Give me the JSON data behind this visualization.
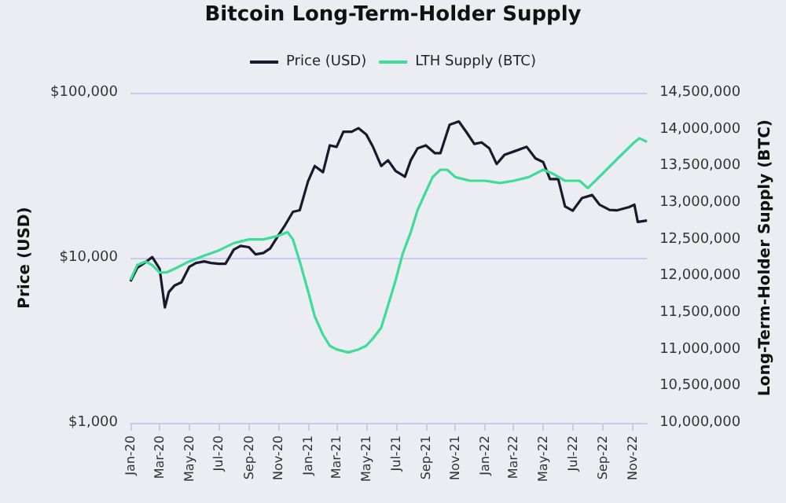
{
  "chart_data": {
    "type": "line",
    "title": "Bitcoin Long-Term-Holder Supply",
    "ylabel": "Price (USD)",
    "y2label": "Long-Term-Holder Supply (BTC)",
    "legend": "top",
    "grid": "y",
    "marker": "none",
    "line_style": "solid",
    "log": "y",
    "xlim": [
      "2020-01-01",
      "2022-12-01"
    ],
    "xticks": [
      {
        "value": "2020-01-01",
        "label": "Jan-20"
      },
      {
        "value": "2020-03-01",
        "label": "Mar-20"
      },
      {
        "value": "2020-05-01",
        "label": "May-20"
      },
      {
        "value": "2020-07-01",
        "label": "Jul-20"
      },
      {
        "value": "2020-09-01",
        "label": "Sep-20"
      },
      {
        "value": "2020-11-01",
        "label": "Nov-20"
      },
      {
        "value": "2021-01-01",
        "label": "Jan-21"
      },
      {
        "value": "2021-03-01",
        "label": "Mar-21"
      },
      {
        "value": "2021-05-01",
        "label": "May-21"
      },
      {
        "value": "2021-07-01",
        "label": "Jul-21"
      },
      {
        "value": "2021-09-01",
        "label": "Sep-21"
      },
      {
        "value": "2021-11-01",
        "label": "Nov-21"
      },
      {
        "value": "2022-01-01",
        "label": "Jan-22"
      },
      {
        "value": "2022-03-01",
        "label": "Mar-22"
      },
      {
        "value": "2022-05-01",
        "label": "May-22"
      },
      {
        "value": "2022-07-01",
        "label": "Jul-22"
      },
      {
        "value": "2022-09-01",
        "label": "Sep-22"
      },
      {
        "value": "2022-11-01",
        "label": "Nov-22"
      }
    ],
    "ylim": [
      1000,
      100000
    ],
    "yticks": [
      {
        "value": 1000,
        "label": "$1,000"
      },
      {
        "value": 10000,
        "label": "$10,000"
      },
      {
        "value": 100000,
        "label": "$100,000"
      }
    ],
    "y2lim": [
      10000000,
      14500000
    ],
    "y2ticks": [
      {
        "value": 10000000,
        "label": "10,000,000"
      },
      {
        "value": 10500000,
        "label": "10,500,000"
      },
      {
        "value": 11000000,
        "label": "11,000,000"
      },
      {
        "value": 11500000,
        "label": "11,500,000"
      },
      {
        "value": 12000000,
        "label": "12,000,000"
      },
      {
        "value": 12500000,
        "label": "12,500,000"
      },
      {
        "value": 13000000,
        "label": "13,000,000"
      },
      {
        "value": 13500000,
        "label": "13,500,000"
      },
      {
        "value": 14000000,
        "label": "14,000,000"
      },
      {
        "value": 14500000,
        "label": "14,500,000"
      }
    ],
    "series": [
      {
        "name": "Price (USD)",
        "color": "#1a1a2e",
        "x": [
          "2020-01-01",
          "2020-01-15",
          "2020-02-01",
          "2020-02-15",
          "2020-03-01",
          "2020-03-12",
          "2020-03-20",
          "2020-04-01",
          "2020-04-15",
          "2020-05-01",
          "2020-05-15",
          "2020-06-01",
          "2020-06-15",
          "2020-07-01",
          "2020-07-15",
          "2020-08-01",
          "2020-08-15",
          "2020-09-01",
          "2020-09-15",
          "2020-10-01",
          "2020-10-15",
          "2020-11-01",
          "2020-11-15",
          "2020-12-01",
          "2020-12-15",
          "2021-01-01",
          "2021-01-15",
          "2021-02-01",
          "2021-02-15",
          "2021-03-01",
          "2021-03-15",
          "2021-04-01",
          "2021-04-15",
          "2021-05-01",
          "2021-05-15",
          "2021-06-01",
          "2021-06-15",
          "2021-07-01",
          "2021-07-20",
          "2021-08-01",
          "2021-08-15",
          "2021-09-01",
          "2021-09-20",
          "2021-10-01",
          "2021-10-20",
          "2021-11-08",
          "2021-11-25",
          "2021-12-10",
          "2021-12-25",
          "2022-01-10",
          "2022-01-25",
          "2022-02-10",
          "2022-03-01",
          "2022-03-28",
          "2022-04-15",
          "2022-05-01",
          "2022-05-15",
          "2022-06-01",
          "2022-06-15",
          "2022-07-01",
          "2022-07-20",
          "2022-08-10",
          "2022-08-25",
          "2022-09-15",
          "2022-10-01",
          "2022-10-25",
          "2022-11-05",
          "2022-11-12",
          "2022-12-01"
        ],
        "values": [
          7200,
          8700,
          9400,
          10100,
          8600,
          5000,
          6200,
          6800,
          7100,
          8800,
          9300,
          9500,
          9300,
          9200,
          9200,
          11200,
          11800,
          11600,
          10500,
          10700,
          11400,
          13700,
          15800,
          19000,
          19400,
          29000,
          36000,
          33000,
          48000,
          47000,
          58000,
          58000,
          61000,
          56000,
          47000,
          36000,
          39000,
          33500,
          31000,
          39000,
          46000,
          48000,
          43000,
          43000,
          64000,
          67000,
          57000,
          49000,
          50000,
          46000,
          37000,
          42000,
          44000,
          47000,
          40000,
          38000,
          30000,
          30000,
          20500,
          19300,
          23000,
          24000,
          21000,
          19500,
          19400,
          20300,
          21000,
          16500,
          16800
        ]
      },
      {
        "name": "LTH Supply (BTC)",
        "color": "#3ddc97",
        "axis": "y2",
        "x": [
          "2020-01-01",
          "2020-01-15",
          "2020-02-01",
          "2020-02-15",
          "2020-03-01",
          "2020-03-15",
          "2020-04-01",
          "2020-05-01",
          "2020-06-01",
          "2020-07-01",
          "2020-08-01",
          "2020-09-01",
          "2020-10-01",
          "2020-11-01",
          "2020-11-20",
          "2020-12-01",
          "2020-12-15",
          "2021-01-01",
          "2021-01-15",
          "2021-02-01",
          "2021-02-15",
          "2021-03-01",
          "2021-03-25",
          "2021-04-15",
          "2021-05-01",
          "2021-05-15",
          "2021-06-01",
          "2021-06-15",
          "2021-07-01",
          "2021-07-15",
          "2021-08-01",
          "2021-08-15",
          "2021-09-01",
          "2021-09-15",
          "2021-10-01",
          "2021-10-15",
          "2021-11-01",
          "2021-12-01",
          "2022-01-01",
          "2022-02-01",
          "2022-03-01",
          "2022-04-01",
          "2022-05-01",
          "2022-05-20",
          "2022-06-15",
          "2022-07-15",
          "2022-08-01",
          "2022-09-01",
          "2022-10-01",
          "2022-11-01",
          "2022-11-15",
          "2022-12-01"
        ],
        "values": [
          11950000,
          12150000,
          12200000,
          12150000,
          12050000,
          12050000,
          12100000,
          12200000,
          12280000,
          12350000,
          12450000,
          12500000,
          12500000,
          12550000,
          12600000,
          12500000,
          12200000,
          11800000,
          11450000,
          11200000,
          11050000,
          11000000,
          10960000,
          11000000,
          11050000,
          11150000,
          11300000,
          11600000,
          11950000,
          12300000,
          12600000,
          12900000,
          13150000,
          13350000,
          13450000,
          13450000,
          13350000,
          13300000,
          13300000,
          13270000,
          13300000,
          13350000,
          13450000,
          13400000,
          13300000,
          13300000,
          13200000,
          13400000,
          13600000,
          13800000,
          13880000,
          13830000
        ]
      }
    ]
  }
}
